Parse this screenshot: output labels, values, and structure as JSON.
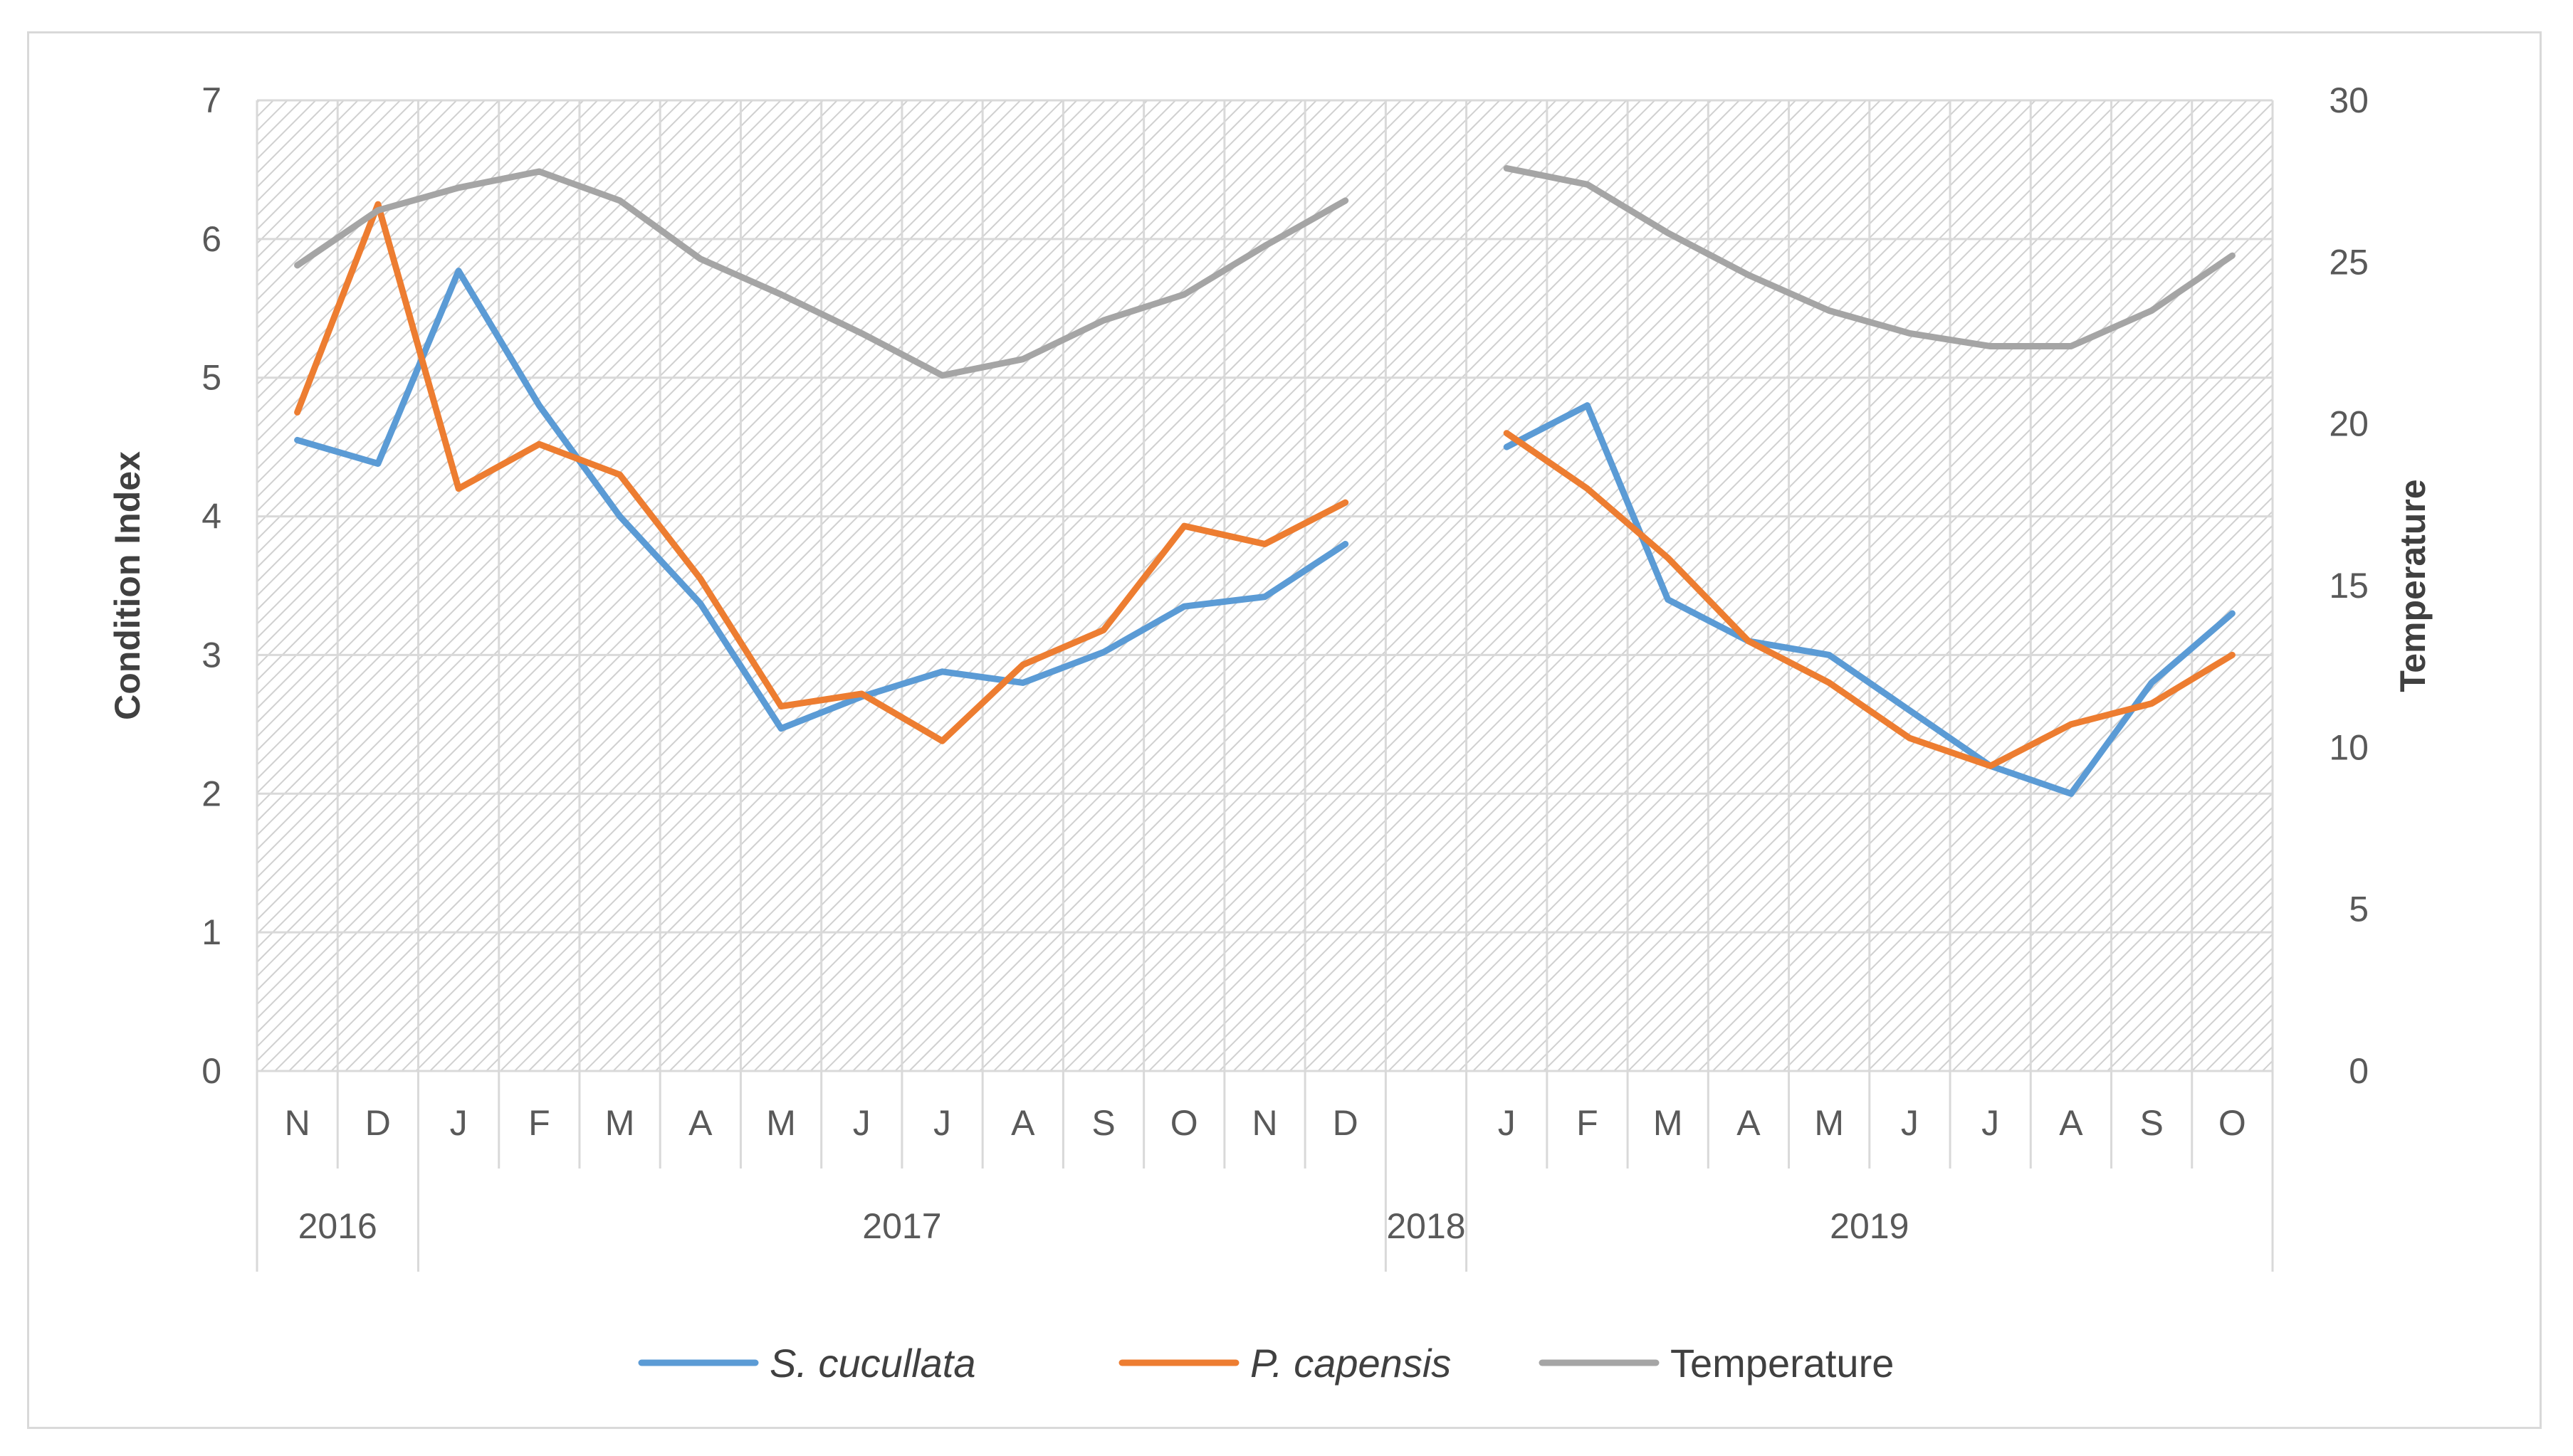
{
  "chart_data": {
    "type": "line",
    "ylabel": "Condition Index",
    "y2label": "Temperature",
    "ylim": [
      0,
      7
    ],
    "y2lim": [
      0,
      30
    ],
    "yticks": [
      "0",
      "1",
      "2",
      "3",
      "4",
      "5",
      "6",
      "7"
    ],
    "y2ticks": [
      "0",
      "5",
      "10",
      "15",
      "20",
      "25",
      "30"
    ],
    "grid": true,
    "legend_position": "bottom",
    "categories": [
      "N",
      "D",
      "J",
      "F",
      "M",
      "A",
      "M",
      "J",
      "J",
      "A",
      "S",
      "O",
      "N",
      "D",
      "",
      "J",
      "F",
      "M",
      "A",
      "M",
      "J",
      "J",
      "A",
      "S",
      "O"
    ],
    "year_groups": [
      {
        "label": "2016",
        "start": 0,
        "end": 1
      },
      {
        "label": "2017",
        "start": 2,
        "end": 13
      },
      {
        "label": "2018",
        "start": 14,
        "end": 14
      },
      {
        "label": "2019",
        "start": 15,
        "end": 24
      }
    ],
    "series": [
      {
        "name": "S. cucullata",
        "color": "#5b9bd5",
        "axis": "left",
        "values": [
          4.55,
          4.38,
          5.77,
          4.8,
          4.0,
          3.37,
          2.47,
          2.7,
          2.88,
          2.8,
          3.02,
          3.35,
          3.42,
          3.8,
          null,
          4.5,
          4.8,
          3.4,
          3.1,
          3.0,
          2.6,
          2.2,
          2.0,
          2.8,
          3.3
        ]
      },
      {
        "name": "P. capensis",
        "color": "#ed7d31",
        "axis": "left",
        "values": [
          4.75,
          6.25,
          4.2,
          4.52,
          4.3,
          3.55,
          2.63,
          2.72,
          2.38,
          2.93,
          3.18,
          3.93,
          3.8,
          4.1,
          null,
          4.6,
          4.2,
          3.7,
          3.1,
          2.8,
          2.4,
          2.2,
          2.5,
          2.65,
          3.0
        ]
      },
      {
        "name": "Temperature",
        "color": "#a5a5a5",
        "axis": "right",
        "values": [
          24.9,
          26.6,
          27.3,
          27.8,
          26.9,
          25.1,
          24.0,
          22.8,
          21.5,
          22.0,
          23.2,
          24.0,
          25.5,
          26.9,
          null,
          27.9,
          27.4,
          25.9,
          24.6,
          23.5,
          22.8,
          22.4,
          22.4,
          23.5,
          25.2
        ]
      }
    ]
  }
}
